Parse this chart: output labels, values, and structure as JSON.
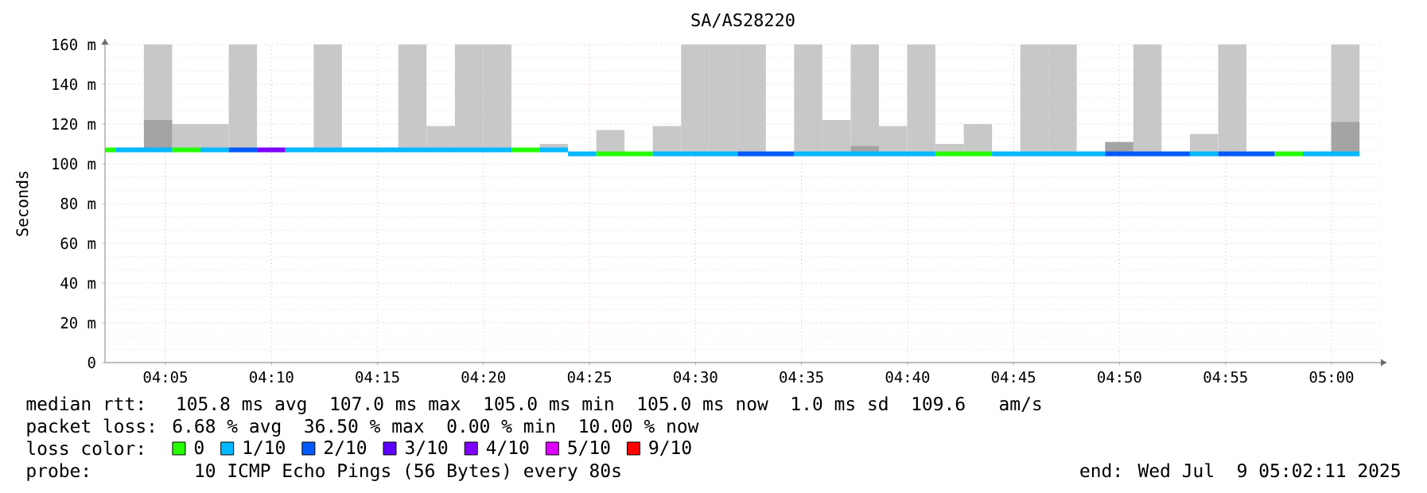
{
  "chart_data": {
    "type": "line",
    "title": "SA/AS28220",
    "ylabel": "Seconds",
    "legend_title": "loss color:",
    "legend": "bottom",
    "grid": true,
    "xlim": [
      4.0358,
      5.0388
    ],
    "ylim": [
      0,
      160
    ],
    "xticks": [
      {
        "value": 4.0833,
        "label": "04:05"
      },
      {
        "value": 4.1667,
        "label": "04:10"
      },
      {
        "value": 4.25,
        "label": "04:15"
      },
      {
        "value": 4.3333,
        "label": "04:20"
      },
      {
        "value": 4.4167,
        "label": "04:25"
      },
      {
        "value": 4.5,
        "label": "04:30"
      },
      {
        "value": 4.5833,
        "label": "04:35"
      },
      {
        "value": 4.6667,
        "label": "04:40"
      },
      {
        "value": 4.75,
        "label": "04:45"
      },
      {
        "value": 4.8333,
        "label": "04:50"
      },
      {
        "value": 4.9167,
        "label": "04:55"
      },
      {
        "value": 5.0,
        "label": "05:00"
      }
    ],
    "yticks": [
      0,
      {
        "value": 20,
        "label": "20 m"
      },
      {
        "value": 40,
        "label": "40 m"
      },
      {
        "value": 60,
        "label": "60 m"
      },
      {
        "value": 80,
        "label": "80 m"
      },
      {
        "value": 100,
        "label": "100 m"
      },
      {
        "value": 120,
        "label": "120 m"
      },
      {
        "value": 140,
        "label": "140 m"
      },
      {
        "value": 160,
        "label": "160 m"
      }
    ],
    "series": [
      {
        "type": "bar",
        "color": "#c8c8c8",
        "x": [
          4.0775,
          4.0998,
          4.122,
          4.1442,
          4.2109,
          4.2775,
          4.2998,
          4.322,
          4.3442,
          4.3886,
          4.4331,
          4.4775,
          4.4998,
          4.522,
          4.5442,
          4.5886,
          4.6109,
          4.6331,
          4.6553,
          4.6775,
          4.6998,
          4.722,
          4.7664,
          4.7886,
          4.8553,
          4.8998,
          4.922,
          5.0109
        ],
        "base": [
          107,
          107,
          107,
          107,
          107,
          107,
          107,
          107,
          107,
          107,
          105,
          105,
          105,
          105,
          105,
          105,
          105,
          105,
          105,
          105,
          105,
          105,
          105,
          105,
          105,
          105,
          105,
          105
        ],
        "values": [
          53,
          13,
          13,
          53,
          53,
          53,
          12,
          53,
          53,
          3,
          12,
          14,
          55,
          55,
          55,
          55,
          17,
          55,
          14,
          55,
          5,
          15,
          55,
          55,
          55,
          10,
          55,
          55
        ]
      },
      {
        "type": "bar",
        "color": "#a4a4a4",
        "x": [
          4.0775,
          4.6331,
          4.8331,
          5.0109
        ],
        "base": [
          107,
          105,
          105,
          105
        ],
        "values": [
          15,
          4,
          6,
          16
        ]
      },
      {
        "name": "0",
        "color": "#26ff00",
        "x": [
          4.0358,
          4.0442,
          null,
          4.0886,
          4.1109,
          null,
          4.3553,
          4.3775,
          null,
          4.422,
          4.4664,
          null,
          4.6886,
          4.7331,
          null,
          4.9553,
          4.9775
        ],
        "values": [
          107,
          107,
          null,
          107,
          107,
          null,
          107,
          107,
          null,
          105,
          105,
          null,
          105,
          105,
          null,
          105,
          105
        ]
      },
      {
        "name": "1/10",
        "color": "#00b8ff",
        "x": [
          4.0442,
          4.0886,
          null,
          4.1109,
          4.1331,
          null,
          4.1775,
          4.3553,
          null,
          4.3775,
          4.3998,
          null,
          4.3998,
          4.422,
          null,
          4.4664,
          4.5331,
          null,
          4.5775,
          4.6886,
          null,
          4.7331,
          4.822,
          null,
          4.8886,
          4.9109,
          null,
          4.9775,
          5.022
        ],
        "values": [
          107,
          107,
          null,
          107,
          107,
          null,
          107,
          107,
          null,
          107,
          107,
          null,
          105,
          105,
          null,
          105,
          105,
          null,
          105,
          105,
          null,
          105,
          105,
          null,
          105,
          105,
          null,
          105,
          105
        ]
      },
      {
        "name": "2/10",
        "color": "#0059ff",
        "x": [
          4.1331,
          4.1553,
          null,
          4.5331,
          4.5775,
          null,
          4.822,
          4.8886,
          null,
          4.9109,
          4.9553
        ],
        "values": [
          107,
          107,
          null,
          105,
          105,
          null,
          105,
          105,
          null,
          105,
          105
        ]
      },
      {
        "name": "3/10",
        "color": "#5e00ff"
      },
      {
        "name": "4/10",
        "color": "#7e00ff",
        "x": [
          4.1553,
          4.1775
        ],
        "values": [
          107,
          107
        ]
      },
      {
        "name": "5/10",
        "color": "#dd00ff"
      },
      {
        "name": "9/10",
        "color": "#ff0000"
      }
    ],
    "annotations": [
      "median rtt:  105.8 ms avg  107.0 ms max  105.0 ms min  105.0 ms now  1.0 ms sd  109.6   am/s",
      "packet loss: 6.68 % avg  36.50 % max  0.00 % min  10.00 % now",
      "probe:       10 ICMP Echo Pings (56 Bytes) every 80s",
      "end: Wed Jul  9 05:02:11 2025"
    ]
  }
}
